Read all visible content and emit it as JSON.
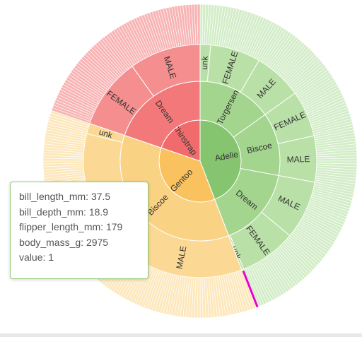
{
  "chart_data": {
    "type": "sunburst",
    "colors": {
      "Adelie": [
        "#86c56f",
        "#a3d58e",
        "#b9e0a7",
        "#d4edc9"
      ],
      "Gentoo": [
        "#f9c25f",
        "#fad283",
        "#fbd994",
        "#fde8bd"
      ],
      "Chinstrap": [
        "#f26b6c",
        "#f2787a",
        "#f48e8f",
        "#f8b4b5"
      ],
      "highlight": "#e600cc"
    },
    "hierarchy": [
      {
        "name": "Adelie",
        "value": 152,
        "children": [
          {
            "name": "Torgersen",
            "value": 52,
            "children": [
              {
                "name": "unk",
                "value": 5
              },
              {
                "name": "FEMALE",
                "value": 24
              },
              {
                "name": "MALE",
                "value": 23
              }
            ]
          },
          {
            "name": "Biscoe",
            "value": 44,
            "children": [
              {
                "name": "unk",
                "value": 0
              },
              {
                "name": "FEMALE",
                "value": 22
              },
              {
                "name": "MALE",
                "value": 22
              }
            ]
          },
          {
            "name": "Dream",
            "value": 56,
            "children": [
              {
                "name": "MALE",
                "value": 28
              },
              {
                "name": "FEMALE",
                "value": 27
              },
              {
                "name": "unk",
                "value": 1
              }
            ]
          }
        ]
      },
      {
        "name": "Gentoo",
        "value": 124,
        "children": [
          {
            "name": "Biscoe",
            "value": 124,
            "children": [
              {
                "name": "MALE",
                "value": 61
              },
              {
                "name": "FEMALE",
                "value": 58
              },
              {
                "name": "unk",
                "value": 5
              }
            ]
          }
        ]
      },
      {
        "name": "Chinstrap",
        "value": 68,
        "children": [
          {
            "name": "Dream",
            "value": 68,
            "children": [
              {
                "name": "FEMALE",
                "value": 34
              },
              {
                "name": "MALE",
                "value": 34
              }
            ]
          }
        ]
      }
    ]
  },
  "tooltip": {
    "bill_length": "bill_length_mm: 37.5",
    "bill_depth": "bill_depth_mm: 18.9",
    "flipper_length": "flipper_length_mm: 179",
    "body_mass": "body_mass_g: 2975",
    "value": "value: 1"
  }
}
